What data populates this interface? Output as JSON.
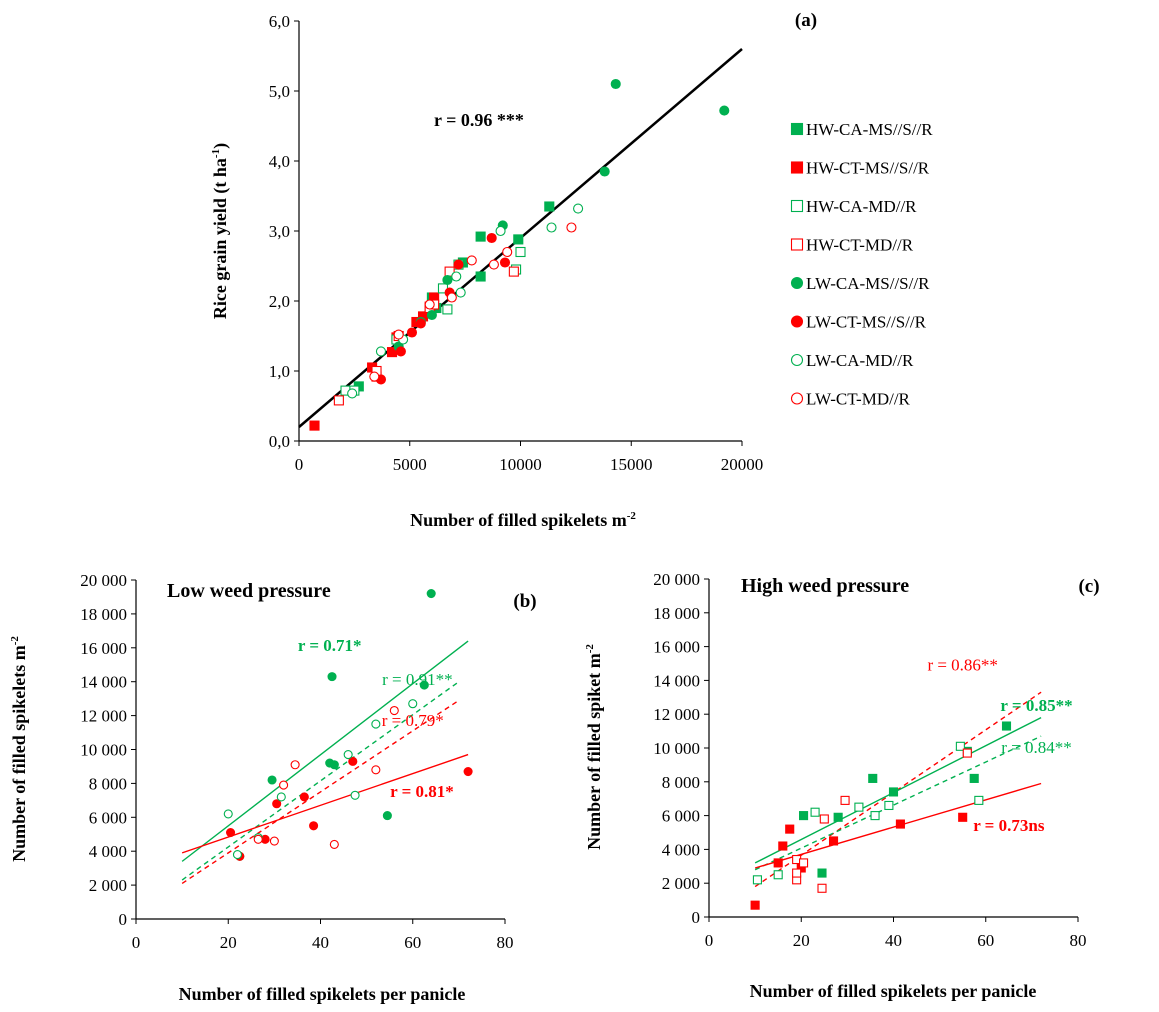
{
  "chart_data": [
    {
      "type": "scatter",
      "panel_label": "(a)",
      "xlabel": "Number of filled spikelets m",
      "xlabel_sup": "-2",
      "ylabel": "Rice grain yield (t ha",
      "ylabel_sup": "-1",
      "ylabel_end": ")",
      "xlim": [
        0,
        20000
      ],
      "ylim": [
        0,
        6
      ],
      "xticks": [
        0,
        5000,
        10000,
        15000,
        20000
      ],
      "xtick_labels": [
        "0",
        "5000",
        "10000",
        "15000",
        "20000"
      ],
      "yticks": [
        0,
        1,
        2,
        3,
        4,
        5,
        6
      ],
      "ytick_labels": [
        "0,0",
        "1,0",
        "2,0",
        "3,0",
        "4,0",
        "5,0",
        "6,0"
      ],
      "annotation": "r = 0.96 ***",
      "trendline": {
        "x": [
          0,
          20000
        ],
        "y": [
          0.2,
          5.6
        ],
        "color": "#000000",
        "dash": false
      },
      "legend_position": "right",
      "legend": [
        {
          "label": "HW-CA-MS//S//R",
          "marker": "square",
          "filled": true,
          "color": "#00b050"
        },
        {
          "label": "HW-CT-MS//S//R",
          "marker": "square",
          "filled": true,
          "color": "#ff0000"
        },
        {
          "label": "HW-CA-MD//R",
          "marker": "square",
          "filled": false,
          "color": "#00b050"
        },
        {
          "label": "HW-CT-MD//R",
          "marker": "square",
          "filled": false,
          "color": "#ff0000"
        },
        {
          "label": "LW-CA-MS//S//R",
          "marker": "circle",
          "filled": true,
          "color": "#00b050"
        },
        {
          "label": "LW-CT-MS//S//R",
          "marker": "circle",
          "filled": true,
          "color": "#ff0000"
        },
        {
          "label": "LW-CA-MD//R",
          "marker": "circle",
          "filled": false,
          "color": "#00b050"
        },
        {
          "label": "LW-CT-MD//R",
          "marker": "circle",
          "filled": false,
          "color": "#ff0000"
        }
      ],
      "series": [
        {
          "name": "HW-CA-MS//S//R",
          "marker": "square",
          "filled": true,
          "color": "#00b050",
          "points": [
            [
              2700,
              0.78
            ],
            [
              6000,
              2.05
            ],
            [
              6200,
              1.9
            ],
            [
              7400,
              2.55
            ],
            [
              8200,
              2.92
            ],
            [
              8200,
              2.35
            ],
            [
              9900,
              2.88
            ],
            [
              11300,
              3.35
            ]
          ]
        },
        {
          "name": "HW-CT-MS//S//R",
          "marker": "square",
          "filled": true,
          "color": "#ff0000",
          "points": [
            [
              700,
              0.22
            ],
            [
              3300,
              1.05
            ],
            [
              4200,
              1.27
            ],
            [
              4400,
              1.48
            ],
            [
              5300,
              1.7
            ],
            [
              5600,
              1.78
            ],
            [
              5900,
              1.92
            ],
            [
              6100,
              2.05
            ]
          ]
        },
        {
          "name": "HW-CA-MD//R",
          "marker": "square",
          "filled": false,
          "color": "#00b050",
          "points": [
            [
              2100,
              0.72
            ],
            [
              2500,
              0.72
            ],
            [
              4400,
              1.45
            ],
            [
              6500,
              2.18
            ],
            [
              6700,
              1.88
            ],
            [
              7200,
              2.52
            ],
            [
              10000,
              2.7
            ],
            [
              9800,
              2.45
            ]
          ]
        },
        {
          "name": "HW-CT-MD//R",
          "marker": "square",
          "filled": false,
          "color": "#ff0000",
          "points": [
            [
              1800,
              0.58
            ],
            [
              3500,
              0.92
            ],
            [
              3500,
              1.0
            ],
            [
              5900,
              1.9
            ],
            [
              6800,
              2.42
            ],
            [
              9700,
              2.42
            ],
            [
              4500,
              1.5
            ],
            [
              6100,
              1.95
            ]
          ]
        },
        {
          "name": "LW-CA-MS//S//R",
          "marker": "circle",
          "filled": true,
          "color": "#00b050",
          "points": [
            [
              14300,
              5.1
            ],
            [
              19200,
              4.72
            ],
            [
              13800,
              3.85
            ],
            [
              9200,
              3.08
            ],
            [
              6000,
              1.8
            ],
            [
              5500,
              1.7
            ],
            [
              4500,
              1.35
            ],
            [
              6700,
              2.3
            ]
          ]
        },
        {
          "name": "LW-CT-MS//S//R",
          "marker": "circle",
          "filled": true,
          "color": "#ff0000",
          "points": [
            [
              3700,
              0.88
            ],
            [
              4600,
              1.28
            ],
            [
              5100,
              1.55
            ],
            [
              5500,
              1.68
            ],
            [
              6800,
              2.12
            ],
            [
              7200,
              2.52
            ],
            [
              8700,
              2.9
            ],
            [
              9300,
              2.55
            ]
          ]
        },
        {
          "name": "LW-CA-MD//R",
          "marker": "circle",
          "filled": false,
          "color": "#00b050",
          "points": [
            [
              2400,
              0.68
            ],
            [
              3700,
              1.28
            ],
            [
              4700,
              1.45
            ],
            [
              7100,
              2.35
            ],
            [
              7300,
              2.12
            ],
            [
              9100,
              3.0
            ],
            [
              11400,
              3.05
            ],
            [
              12600,
              3.32
            ]
          ]
        },
        {
          "name": "LW-CT-MD//R",
          "marker": "circle",
          "filled": false,
          "color": "#ff0000",
          "points": [
            [
              3400,
              0.92
            ],
            [
              4500,
              1.52
            ],
            [
              5900,
              1.95
            ],
            [
              7800,
              2.58
            ],
            [
              8800,
              2.52
            ],
            [
              9400,
              2.7
            ],
            [
              12300,
              3.05
            ],
            [
              6900,
              2.05
            ]
          ]
        }
      ]
    },
    {
      "type": "scatter",
      "panel_label": "(b)",
      "title": "Low weed pressure",
      "xlabel": "Number of filled spikelets per panicle",
      "ylabel": "Number of filled spikelets m",
      "ylabel_sup": "-2",
      "xlim": [
        0,
        80
      ],
      "ylim": [
        0,
        20000
      ],
      "xticks": [
        0,
        20,
        40,
        60,
        80
      ],
      "xtick_labels": [
        "0",
        "20",
        "40",
        "60",
        "80"
      ],
      "yticks": [
        0,
        2000,
        4000,
        6000,
        8000,
        10000,
        12000,
        14000,
        16000,
        18000,
        20000
      ],
      "ytick_labels": [
        "0",
        "2 000",
        "4 000",
        "6 000",
        "8 000",
        "10 000",
        "12 000",
        "14 000",
        "16 000",
        "18 000",
        "20 000"
      ],
      "annotations": [
        {
          "text": "r = 0.71*",
          "x": 42,
          "y": 15800,
          "color": "#00b050",
          "bold": true
        },
        {
          "text": "r = 0.91**",
          "x": 61,
          "y": 13800,
          "color": "#00b050",
          "bold": false
        },
        {
          "text": "r = 0.79*",
          "x": 60,
          "y": 11400,
          "color": "#ff0000",
          "bold": false
        },
        {
          "text": "r = 0.81*",
          "x": 62,
          "y": 7200,
          "color": "#ff0000",
          "bold": true
        }
      ],
      "trendlines": [
        {
          "name": "LW-CA-MS//S//R",
          "x": [
            10,
            72
          ],
          "y": [
            3400,
            16400
          ],
          "color": "#00b050",
          "dash": false
        },
        {
          "name": "LW-CA-MD//R",
          "x": [
            10,
            70
          ],
          "y": [
            2300,
            14000
          ],
          "color": "#00b050",
          "dash": true
        },
        {
          "name": "LW-CT-MD//R",
          "x": [
            10,
            70
          ],
          "y": [
            2100,
            12900
          ],
          "color": "#ff0000",
          "dash": true
        },
        {
          "name": "LW-CT-MS//S//R",
          "x": [
            10,
            72
          ],
          "y": [
            3900,
            9700
          ],
          "color": "#ff0000",
          "dash": false
        }
      ],
      "series": [
        {
          "name": "LW-CA-MS//S//R",
          "marker": "circle",
          "filled": true,
          "color": "#00b050",
          "points": [
            [
              64,
              19200
            ],
            [
              42.5,
              14300
            ],
            [
              62.5,
              13800
            ],
            [
              42,
              9200
            ],
            [
              43,
              9100
            ],
            [
              29.5,
              8200
            ],
            [
              54.5,
              6100
            ],
            [
              22.5,
              3700
            ]
          ]
        },
        {
          "name": "LW-CT-MS//S//R",
          "marker": "circle",
          "filled": true,
          "color": "#ff0000",
          "points": [
            [
              20.5,
              5100
            ],
            [
              22.5,
              3700
            ],
            [
              28,
              4700
            ],
            [
              30.5,
              6800
            ],
            [
              36.5,
              7200
            ],
            [
              38.5,
              5500
            ],
            [
              47,
              9300
            ],
            [
              72,
              8700
            ]
          ]
        },
        {
          "name": "LW-CA-MD//R",
          "marker": "circle",
          "filled": false,
          "color": "#00b050",
          "points": [
            [
              20,
              6200
            ],
            [
              22,
              3800
            ],
            [
              31.5,
              7200
            ],
            [
              46,
              9700
            ],
            [
              47.5,
              7300
            ],
            [
              52,
              11500
            ],
            [
              60,
              12700
            ],
            [
              26.5,
              4800
            ]
          ]
        },
        {
          "name": "LW-CT-MD//R",
          "marker": "circle",
          "filled": false,
          "color": "#ff0000",
          "points": [
            [
              26.5,
              4700
            ],
            [
              30,
              4600
            ],
            [
              32,
              7900
            ],
            [
              34.5,
              9100
            ],
            [
              43,
              4400
            ],
            [
              52,
              8800
            ],
            [
              56,
              12300
            ]
          ]
        }
      ]
    },
    {
      "type": "scatter",
      "panel_label": "(c)",
      "title": "High weed pressure",
      "xlabel": "Number of filled spikelets per panicle",
      "ylabel": "Number of filled spiket m",
      "ylabel_sup": "-2",
      "xlim": [
        0,
        80
      ],
      "ylim": [
        0,
        20000
      ],
      "xticks": [
        0,
        20,
        40,
        60,
        80
      ],
      "xtick_labels": [
        "0",
        "20",
        "40",
        "60",
        "80"
      ],
      "yticks": [
        0,
        2000,
        4000,
        6000,
        8000,
        10000,
        12000,
        14000,
        16000,
        18000,
        20000
      ],
      "ytick_labels": [
        "0",
        "2 000",
        "4 000",
        "6 000",
        "8 000",
        "10 000",
        "12 000",
        "14 000",
        "16 000",
        "18 000",
        "20 000"
      ],
      "annotations": [
        {
          "text": "r = 0.86**",
          "x": 55,
          "y": 14600,
          "color": "#ff0000",
          "bold": false
        },
        {
          "text": "r = 0.85**",
          "x": 71,
          "y": 12200,
          "color": "#00b050",
          "bold": true
        },
        {
          "text": "r = 0.84**",
          "x": 71,
          "y": 9700,
          "color": "#00b050",
          "bold": false
        },
        {
          "text": "r = 0.73ns",
          "x": 65,
          "y": 5100,
          "color": "#ff0000",
          "bold": true
        }
      ],
      "trendlines": [
        {
          "name": "HW-CT-MD//R",
          "x": [
            10,
            72
          ],
          "y": [
            1800,
            13300
          ],
          "color": "#ff0000",
          "dash": true
        },
        {
          "name": "HW-CA-MS//S//R",
          "x": [
            10,
            72
          ],
          "y": [
            3200,
            11800
          ],
          "color": "#00b050",
          "dash": false
        },
        {
          "name": "HW-CA-MD//R",
          "x": [
            10,
            72
          ],
          "y": [
            2800,
            10700
          ],
          "color": "#00b050",
          "dash": true
        },
        {
          "name": "HW-CT-MS//S//R",
          "x": [
            10,
            72
          ],
          "y": [
            2900,
            7900
          ],
          "color": "#ff0000",
          "dash": false
        }
      ],
      "series": [
        {
          "name": "HW-CA-MS//S//R",
          "marker": "square",
          "filled": true,
          "color": "#00b050",
          "points": [
            [
              20.5,
              6000
            ],
            [
              24.5,
              2600
            ],
            [
              28,
              5900
            ],
            [
              35.5,
              8200
            ],
            [
              40,
              7400
            ],
            [
              56,
              9800
            ],
            [
              57.5,
              8200
            ],
            [
              64.5,
              11300
            ]
          ]
        },
        {
          "name": "HW-CT-MS//S//R",
          "marker": "square",
          "filled": true,
          "color": "#ff0000",
          "points": [
            [
              10,
              700
            ],
            [
              15,
              3200
            ],
            [
              16,
              4200
            ],
            [
              17.5,
              5200
            ],
            [
              27,
              4500
            ],
            [
              41.5,
              5500
            ],
            [
              55,
              5900
            ],
            [
              20,
              2900
            ]
          ]
        },
        {
          "name": "HW-CA-MD//R",
          "marker": "square",
          "filled": false,
          "color": "#00b050",
          "points": [
            [
              10.5,
              2200
            ],
            [
              15,
              2500
            ],
            [
              23,
              6200
            ],
            [
              32.5,
              6500
            ],
            [
              36,
              6000
            ],
            [
              39,
              6600
            ],
            [
              54.5,
              10100
            ],
            [
              58.5,
              6900
            ]
          ]
        },
        {
          "name": "HW-CT-MD//R",
          "marker": "square",
          "filled": false,
          "color": "#ff0000",
          "points": [
            [
              19,
              2200
            ],
            [
              19,
              3400
            ],
            [
              20.5,
              3200
            ],
            [
              24.5,
              1700
            ],
            [
              25,
              5800
            ],
            [
              29.5,
              6900
            ],
            [
              56,
              9700
            ],
            [
              19,
              2600
            ]
          ]
        }
      ]
    }
  ]
}
